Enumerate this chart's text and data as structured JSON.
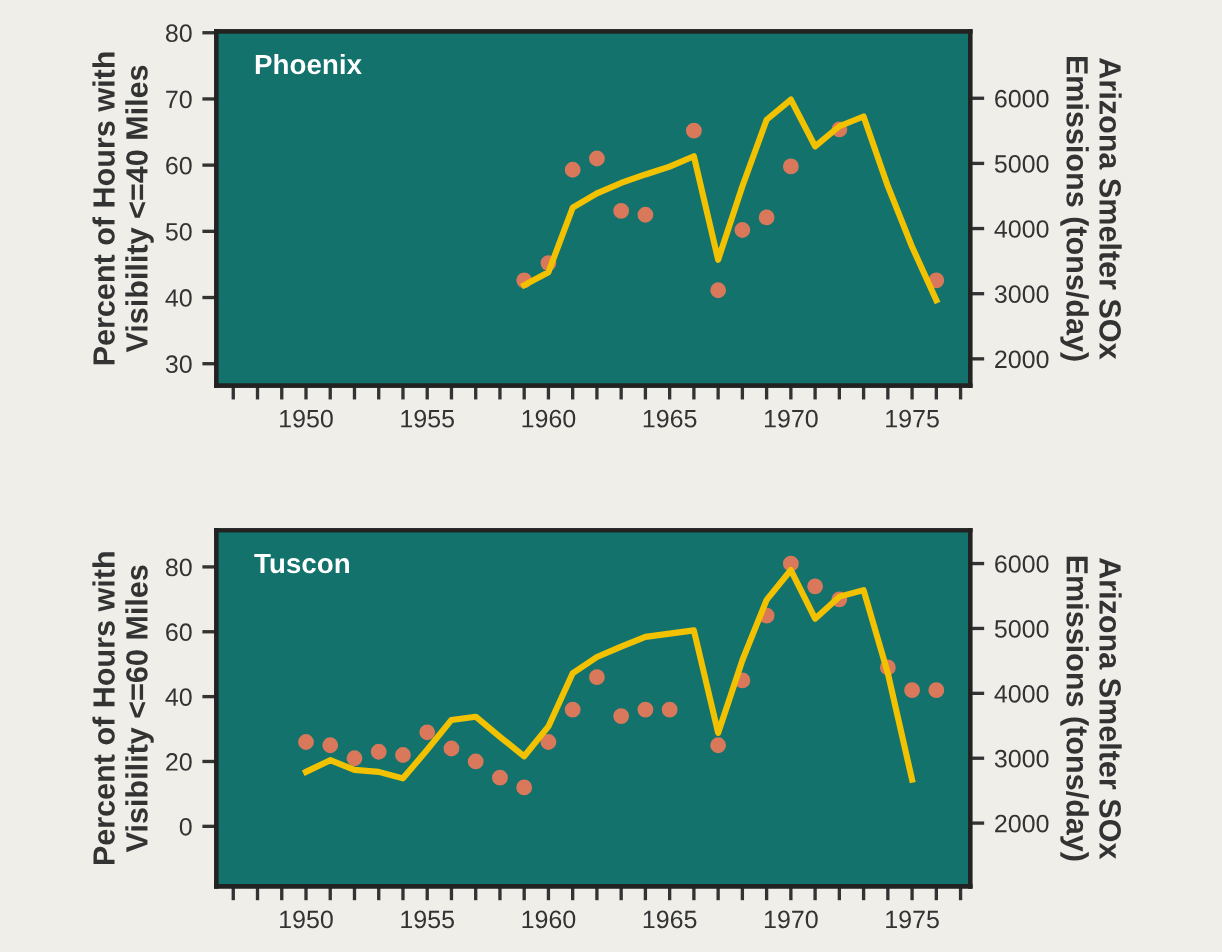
{
  "chart_data": [
    {
      "type": "scatter",
      "title": "Phoenix",
      "ylabel": "Percent of Hours with\nVisibility <=40 Miles",
      "y2label": "Arizona Smelter SOx\nEmissions (tons/day)",
      "xlim": [
        1946.3,
        1977.4
      ],
      "ylim": [
        26.7,
        80.2
      ],
      "yticks": [
        30,
        40,
        50,
        60,
        70,
        80
      ],
      "y2lim": [
        1590,
        7026
      ],
      "y2ticks": [
        2000,
        3000,
        4000,
        5000,
        6000
      ],
      "xticks": [
        {
          "value": 1947,
          "label": null
        },
        {
          "value": 1948,
          "label": null
        },
        {
          "value": 1949,
          "label": null
        },
        1950,
        {
          "value": 1951,
          "label": null
        },
        {
          "value": 1952,
          "label": null
        },
        {
          "value": 1953,
          "label": null
        },
        {
          "value": 1954,
          "label": null
        },
        1955,
        {
          "value": 1956,
          "label": null
        },
        {
          "value": 1957,
          "label": null
        },
        {
          "value": 1958,
          "label": null
        },
        {
          "value": 1959,
          "label": null
        },
        1960,
        {
          "value": 1961,
          "label": null
        },
        {
          "value": 1962,
          "label": null
        },
        {
          "value": 1963,
          "label": null
        },
        {
          "value": 1964,
          "label": null
        },
        1965,
        {
          "value": 1966,
          "label": null
        },
        {
          "value": 1967,
          "label": null
        },
        {
          "value": 1968,
          "label": null
        },
        {
          "value": 1969,
          "label": null
        },
        1970,
        {
          "value": 1971,
          "label": null
        },
        {
          "value": 1972,
          "label": null
        },
        {
          "value": 1973,
          "label": null
        },
        {
          "value": 1974,
          "label": null
        },
        1975,
        {
          "value": 1976,
          "label": null
        },
        {
          "value": 1977,
          "label": null
        }
      ],
      "grid": false,
      "legend": false,
      "series": [
        {
          "marker": "circle",
          "color": "#d9785a",
          "x": [
            1959,
            1960,
            1961,
            1962,
            1963,
            1964,
            1966,
            1967,
            1968,
            1969,
            1970,
            1972,
            1976
          ],
          "values": [
            42.6,
            45.2,
            59.3,
            61,
            53.1,
            52.5,
            65.2,
            41.1,
            50.2,
            52.1,
            59.8,
            65.4,
            42.6
          ]
        },
        {
          "type": "line",
          "axis": "y2",
          "color": "#f2c200",
          "line_style": "solid",
          "x": [
            1959,
            1960,
            1961,
            1962,
            1963,
            1964,
            1965,
            1966,
            1967,
            1968,
            1969,
            1970,
            1971,
            1972,
            1973,
            1974,
            1975,
            1976
          ],
          "values": [
            3130,
            3330,
            4320,
            4540,
            4700,
            4830,
            4950,
            5110,
            3520,
            4650,
            5670,
            5980,
            5260,
            5570,
            5720,
            4650,
            3720,
            2900
          ]
        }
      ]
    },
    {
      "type": "scatter",
      "title": "Tuscon",
      "ylabel": "Percent of Hours with\nVisibility <=60 Miles",
      "y2label": "Arizona Smelter SOx\nEmissions (tons/day)",
      "xlim": [
        1946.3,
        1977.4
      ],
      "ylim": [
        -18.5,
        91.3
      ],
      "yticks": [
        0,
        20,
        40,
        60,
        80
      ],
      "y2lim": [
        1026,
        6513
      ],
      "y2ticks": [
        2000,
        3000,
        4000,
        5000,
        6000
      ],
      "xticks": [
        {
          "value": 1947,
          "label": null
        },
        {
          "value": 1948,
          "label": null
        },
        {
          "value": 1949,
          "label": null
        },
        1950,
        {
          "value": 1951,
          "label": null
        },
        {
          "value": 1952,
          "label": null
        },
        {
          "value": 1953,
          "label": null
        },
        {
          "value": 1954,
          "label": null
        },
        1955,
        {
          "value": 1956,
          "label": null
        },
        {
          "value": 1957,
          "label": null
        },
        {
          "value": 1958,
          "label": null
        },
        {
          "value": 1959,
          "label": null
        },
        1960,
        {
          "value": 1961,
          "label": null
        },
        {
          "value": 1962,
          "label": null
        },
        {
          "value": 1963,
          "label": null
        },
        {
          "value": 1964,
          "label": null
        },
        1965,
        {
          "value": 1966,
          "label": null
        },
        {
          "value": 1967,
          "label": null
        },
        {
          "value": 1968,
          "label": null
        },
        {
          "value": 1969,
          "label": null
        },
        1970,
        {
          "value": 1971,
          "label": null
        },
        {
          "value": 1972,
          "label": null
        },
        {
          "value": 1973,
          "label": null
        },
        {
          "value": 1974,
          "label": null
        },
        1975,
        {
          "value": 1976,
          "label": null
        },
        {
          "value": 1977,
          "label": null
        }
      ],
      "grid": false,
      "legend": false,
      "series": [
        {
          "marker": "circle",
          "color": "#d9785a",
          "x": [
            1950,
            1951,
            1952,
            1953,
            1954,
            1955,
            1956,
            1957,
            1958,
            1959,
            1960,
            1961,
            1962,
            1963,
            1964,
            1965,
            1967,
            1968,
            1969,
            1970,
            1971,
            1972,
            1974,
            1975,
            1976
          ],
          "values": [
            26,
            25,
            21,
            23,
            22,
            29,
            24,
            20,
            15,
            12,
            26,
            36,
            46,
            34,
            36,
            36,
            25,
            45,
            65,
            81,
            74,
            70,
            49,
            42,
            42
          ]
        },
        {
          "type": "line",
          "axis": "y2",
          "color": "#f2c200",
          "line_style": "solid",
          "x": [
            1950,
            1951,
            1952,
            1953,
            1954,
            1955,
            1956,
            1957,
            1958,
            1959,
            1960,
            1961,
            1962,
            1963,
            1964,
            1965,
            1966,
            1967,
            1968,
            1969,
            1970,
            1971,
            1972,
            1973,
            1974,
            1975
          ],
          "values": [
            2790,
            2970,
            2820,
            2790,
            2690,
            3130,
            3590,
            3640,
            3330,
            3030,
            3490,
            4310,
            4560,
            4720,
            4870,
            4920,
            4970,
            3390,
            4510,
            5440,
            5900,
            5150,
            5490,
            5590,
            4310,
            2670
          ]
        }
      ]
    }
  ]
}
